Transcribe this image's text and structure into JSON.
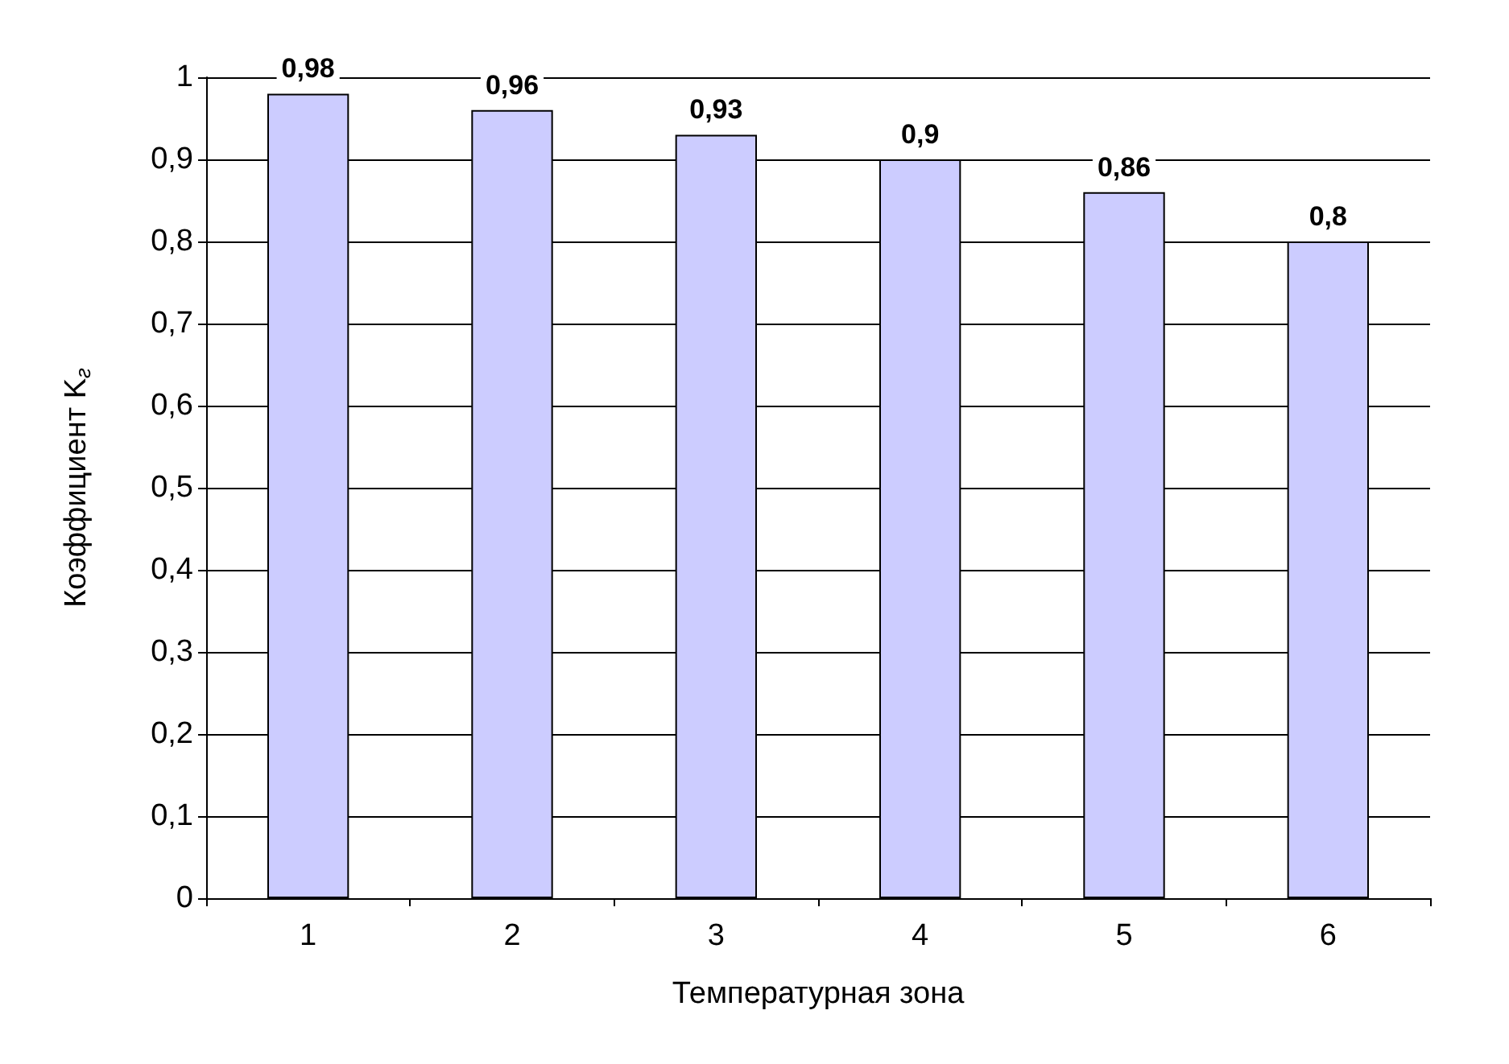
{
  "chart_data": {
    "type": "bar",
    "xlabel": "Температурная зона",
    "ylabel": "Коэффициент K$_{г}$",
    "categories": [
      "1",
      "2",
      "3",
      "4",
      "5",
      "6"
    ],
    "values": [
      0.98,
      0.96,
      0.93,
      0.9,
      0.86,
      0.8
    ],
    "value_labels": [
      "0,98",
      "0,96",
      "0,93",
      "0,9",
      "0,86",
      "0,8"
    ],
    "color": "#ccccff",
    "grid": "y",
    "ylim": [
      0,
      1
    ],
    "yticks": [
      {
        "value": 0,
        "label": "0"
      },
      {
        "value": 0.1,
        "label": "0,1"
      },
      {
        "value": 0.2,
        "label": "0,2"
      },
      {
        "value": 0.3,
        "label": "0,3"
      },
      {
        "value": 0.4,
        "label": "0,4"
      },
      {
        "value": 0.5,
        "label": "0,5"
      },
      {
        "value": 0.6,
        "label": "0,6"
      },
      {
        "value": 0.7,
        "label": "0,7"
      },
      {
        "value": 0.8,
        "label": "0,8"
      },
      {
        "value": 0.9,
        "label": "0,9"
      },
      {
        "value": 1,
        "label": "1"
      }
    ]
  }
}
